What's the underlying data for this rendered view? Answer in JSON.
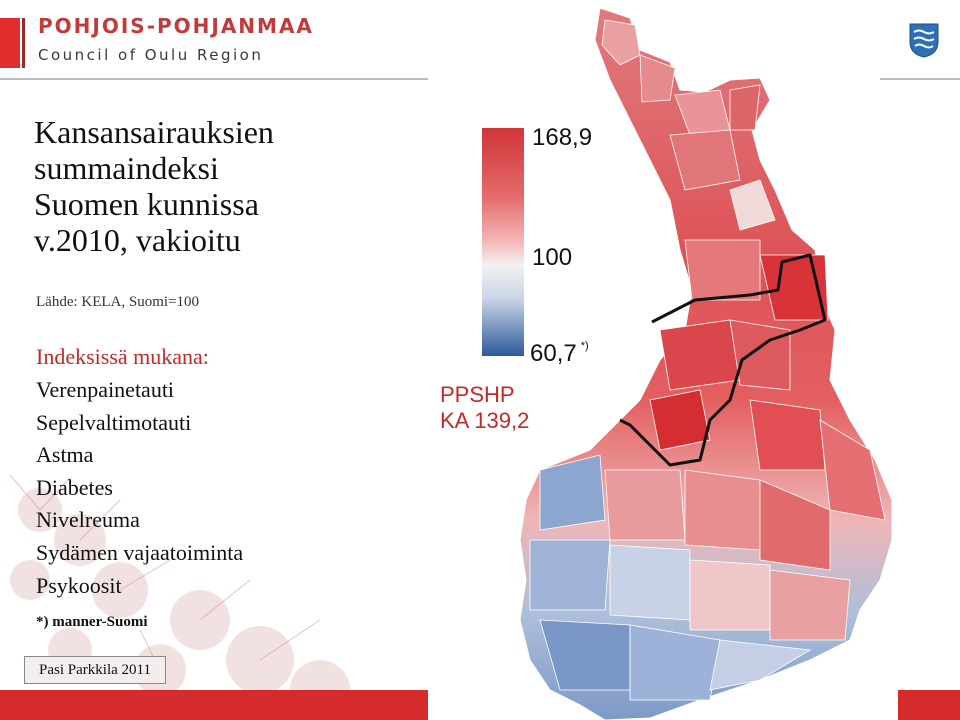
{
  "header": {
    "org_title": "POHJOIS-POHJANMAA",
    "org_subtitle": "Council of Oulu Region",
    "brand_color": "#e02d2d",
    "coat_icon": "coat-of-arms-icon"
  },
  "title": {
    "line1": "Kansansairauksien",
    "line2": "summaindeksi",
    "line3": "Suomen kunnissa",
    "line4": "v.2010, vakioitu"
  },
  "source": "Lähde: KELA, Suomi=100",
  "indicators": {
    "heading": "Indeksissä mukana:",
    "items": [
      "Verenpainetauti",
      "Sepelvaltimotauti",
      "Astma",
      "Diabetes",
      "Nivelreuma",
      "Sydämen vajaatoiminta",
      "Psykoosit"
    ]
  },
  "footnote": "*) manner-Suomi",
  "author": "Pasi Parkkila 2011",
  "legend": {
    "max": "168,9",
    "mid": "100",
    "min": "60,7",
    "min_note": "*)",
    "colors": {
      "high": "#d03538",
      "neutral": "#f3f1f1",
      "low": "#2e5a9a"
    }
  },
  "region": {
    "name": "PPSHP",
    "average": "KA 139,2",
    "color": "#c62828"
  }
}
